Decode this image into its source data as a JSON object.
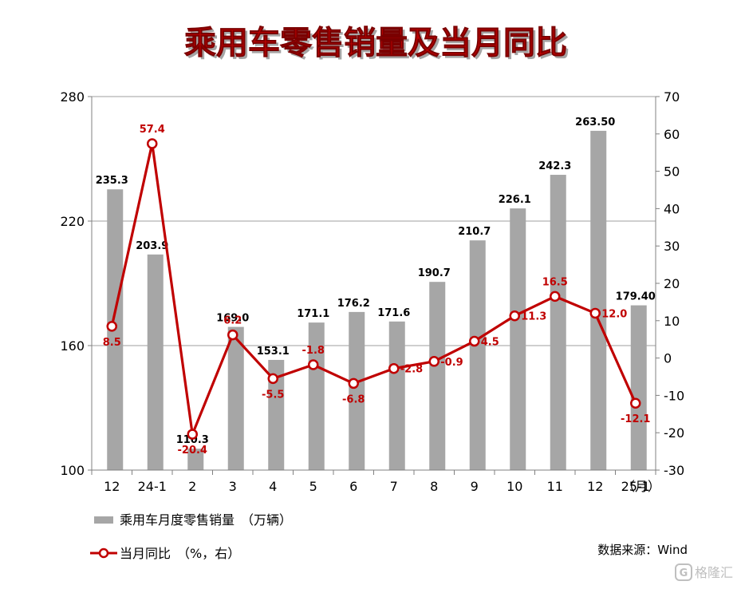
{
  "title": "乘用车零售销量及当月同比",
  "source": "数据来源：Wind",
  "watermark": "格隆汇",
  "colors": {
    "bar": "#a6a6a6",
    "line": "#c00000",
    "title": "#c00000",
    "grid": "#bfbfbf",
    "axis": "#808080",
    "bar_label": "#000000",
    "line_label": "#c00000"
  },
  "chart_data": {
    "type": "bar+line",
    "categories": [
      "12",
      "24-1",
      "2",
      "3",
      "4",
      "5",
      "6",
      "7",
      "8",
      "9",
      "10",
      "11",
      "12",
      "25-1"
    ],
    "x_unit": "（月）",
    "series": [
      {
        "name": "乘用车月度零售销量　（万辆）",
        "type": "bar",
        "axis": "left",
        "values": [
          235.3,
          203.9,
          110.3,
          169.0,
          153.1,
          171.1,
          176.2,
          171.6,
          190.7,
          210.7,
          226.1,
          242.3,
          263.5,
          179.4
        ],
        "labels": [
          "235.3",
          "203.9",
          "110.3",
          "169.0",
          "153.1",
          "171.1",
          "176.2",
          "171.6",
          "190.7",
          "210.7",
          "226.1",
          "242.3",
          "263.50",
          "179.40"
        ]
      },
      {
        "name": "当月同比　（%，右）",
        "type": "line",
        "axis": "right",
        "values": [
          8.5,
          57.4,
          -20.4,
          6.2,
          -5.5,
          -1.8,
          -6.8,
          -2.8,
          -0.9,
          4.5,
          11.3,
          16.5,
          12.0,
          -12.1
        ],
        "labels": [
          "8.5",
          "57.4",
          "-20.4",
          "6.2",
          "-5.5",
          "-1.8",
          "-6.8",
          "-2.8",
          "-0.9",
          "4.5",
          "11.3",
          "16.5",
          "12.0",
          "-12.1"
        ]
      }
    ],
    "left_axis": {
      "min": 100,
      "max": 280,
      "ticks": [
        100,
        160,
        220,
        280
      ]
    },
    "right_axis": {
      "min": -30,
      "max": 70,
      "ticks": [
        -30,
        -20,
        -10,
        0,
        10,
        20,
        30,
        40,
        50,
        60,
        70
      ]
    },
    "grid": true,
    "legend_position": "bottom-left"
  }
}
